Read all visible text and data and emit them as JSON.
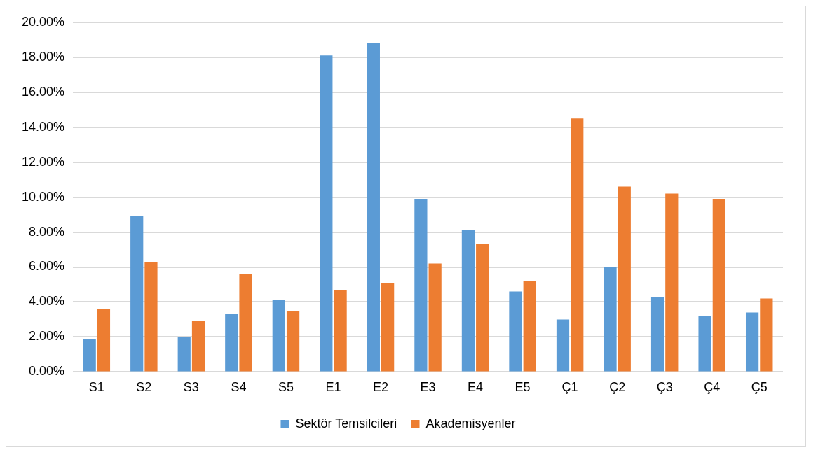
{
  "chart_data": {
    "type": "bar",
    "categories": [
      "S1",
      "S2",
      "S3",
      "S4",
      "S5",
      "E1",
      "E2",
      "E3",
      "E4",
      "E5",
      "Ç1",
      "Ç2",
      "Ç3",
      "Ç4",
      "Ç5"
    ],
    "series": [
      {
        "name": "Sektör Temsilcileri",
        "color": "#5b9bd5",
        "values": [
          1.9,
          8.9,
          2.0,
          3.3,
          4.1,
          18.1,
          18.8,
          9.9,
          8.1,
          4.6,
          3.0,
          6.0,
          4.3,
          3.2,
          3.4
        ]
      },
      {
        "name": "Akademisyenler",
        "color": "#ed7d31",
        "values": [
          3.6,
          6.3,
          2.9,
          5.6,
          3.5,
          4.7,
          5.1,
          6.2,
          7.3,
          5.2,
          14.5,
          10.6,
          10.2,
          9.9,
          4.2
        ]
      }
    ],
    "ylim": [
      0,
      20
    ],
    "yticks": [
      {
        "value": 0,
        "label": "0.00%"
      },
      {
        "value": 2,
        "label": "2.00%"
      },
      {
        "value": 4,
        "label": "4.00%"
      },
      {
        "value": 6,
        "label": "6.00%"
      },
      {
        "value": 8,
        "label": "8.00%"
      },
      {
        "value": 10,
        "label": "10.00%"
      },
      {
        "value": 12,
        "label": "12.00%"
      },
      {
        "value": 14,
        "label": "14.00%"
      },
      {
        "value": 16,
        "label": "16.00%"
      },
      {
        "value": 18,
        "label": "18.00%"
      },
      {
        "value": 20,
        "label": "20.00%"
      }
    ],
    "grid": "y",
    "legend": "bottom"
  }
}
